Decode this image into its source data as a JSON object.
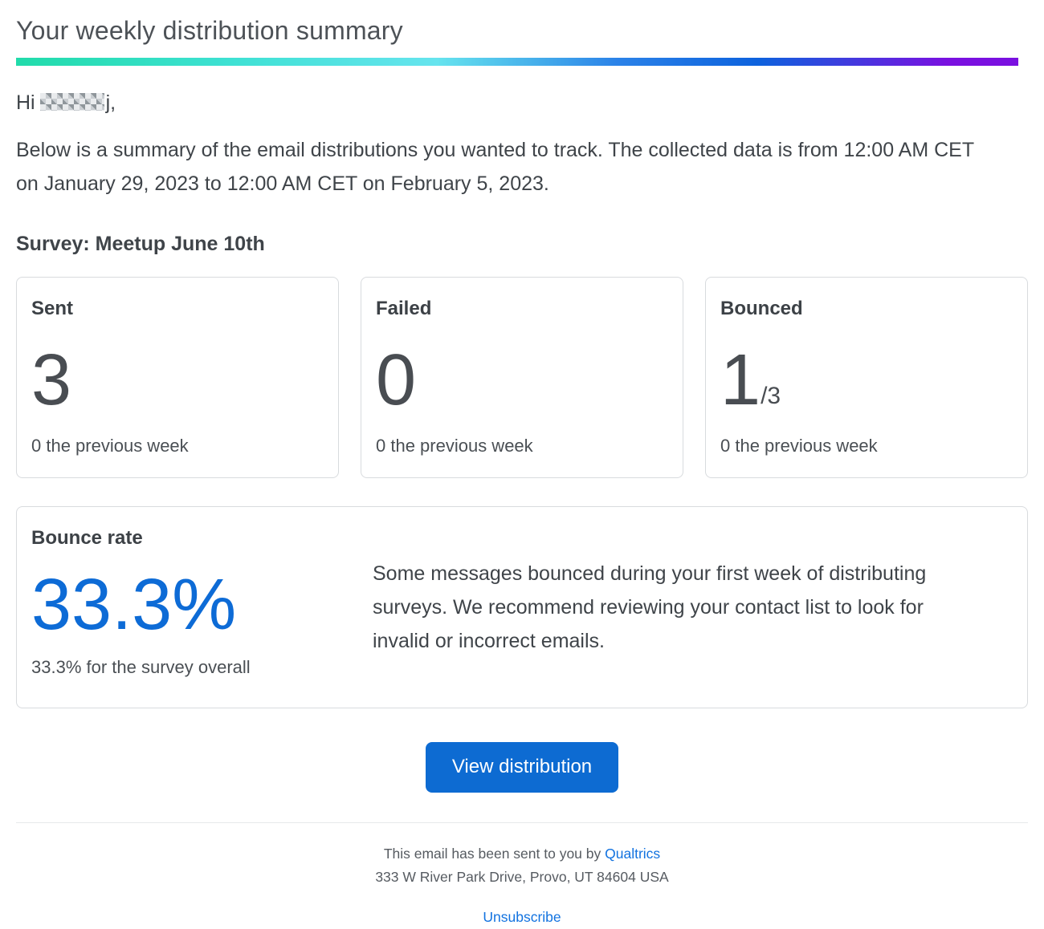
{
  "header": {
    "title": "Your weekly distribution summary"
  },
  "greeting": {
    "prefix": "Hi",
    "suffix": "j,"
  },
  "intro": "Below is a summary of the email distributions you wanted to track. The collected data is from 12:00 AM CET on January 29, 2023 to 12:00 AM CET on February 5, 2023.",
  "survey": {
    "label": "Survey: Meetup June 10th"
  },
  "stats": [
    {
      "label": "Sent",
      "value": "3",
      "suffix": "",
      "note": "0 the previous week"
    },
    {
      "label": "Failed",
      "value": "0",
      "suffix": "",
      "note": "0 the previous week"
    },
    {
      "label": "Bounced",
      "value": "1",
      "suffix": "/3",
      "note": "0 the previous week"
    }
  ],
  "bounce_rate": {
    "label": "Bounce rate",
    "value": "33.3%",
    "note": "33.3% for the survey overall",
    "message": "Some messages bounced during your first week of distributing surveys. We recommend reviewing your contact list to look for invalid or incorrect emails.",
    "accent_color": "#0d6bd6"
  },
  "cta": {
    "label": "View distribution"
  },
  "footer": {
    "sent_by_prefix": "This email has been sent to you by ",
    "brand": "Qualtrics",
    "address": "333 W River Park Drive, Provo, UT 84604 USA",
    "unsubscribe": "Unsubscribe"
  },
  "colors": {
    "gradient": [
      "#21dbaa",
      "#66e4ee",
      "#0d62dd",
      "#7a10e0"
    ],
    "button_blue": "#0d6bd2",
    "link_blue": "#1373e0"
  }
}
